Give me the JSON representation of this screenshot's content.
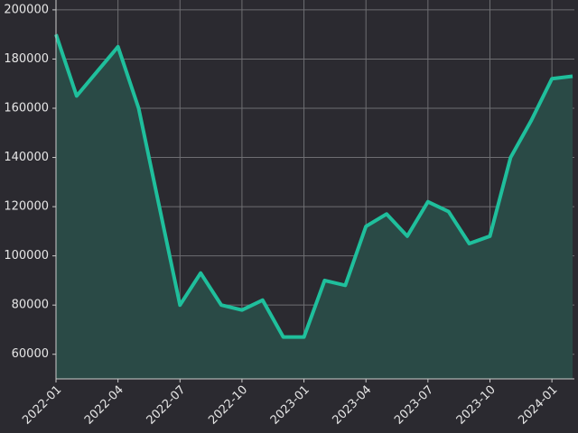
{
  "chart_data": {
    "type": "area",
    "x": [
      "2022-01",
      "2022-02",
      "2022-03",
      "2022-04",
      "2022-05",
      "2022-06",
      "2022-07",
      "2022-08",
      "2022-09",
      "2022-10",
      "2022-11",
      "2022-12",
      "2023-01",
      "2023-02",
      "2023-03",
      "2023-04",
      "2023-05",
      "2023-06",
      "2023-07",
      "2023-08",
      "2023-09",
      "2023-10",
      "2023-11",
      "2023-12",
      "2024-01",
      "2024-02"
    ],
    "values": [
      190000,
      165000,
      175000,
      185000,
      160000,
      120000,
      80000,
      93000,
      80000,
      78000,
      82000,
      67000,
      67000,
      90000,
      88000,
      112000,
      117000,
      108000,
      122000,
      118000,
      105000,
      108000,
      140000,
      155000,
      172000,
      173000
    ],
    "color": "#1fbf9c",
    "fill_color": "#2a4a46",
    "background": "#2b2a30",
    "xlim": [
      "2022-01",
      "2024-02"
    ],
    "xticks": [
      "2022-01",
      "2022-04",
      "2022-07",
      "2022-10",
      "2023-01",
      "2023-04",
      "2023-07",
      "2023-10",
      "2024-01"
    ],
    "ylim": [
      50000,
      204000
    ],
    "yticks": [
      60000,
      80000,
      100000,
      120000,
      140000,
      160000,
      180000,
      200000
    ],
    "grid": true
  }
}
